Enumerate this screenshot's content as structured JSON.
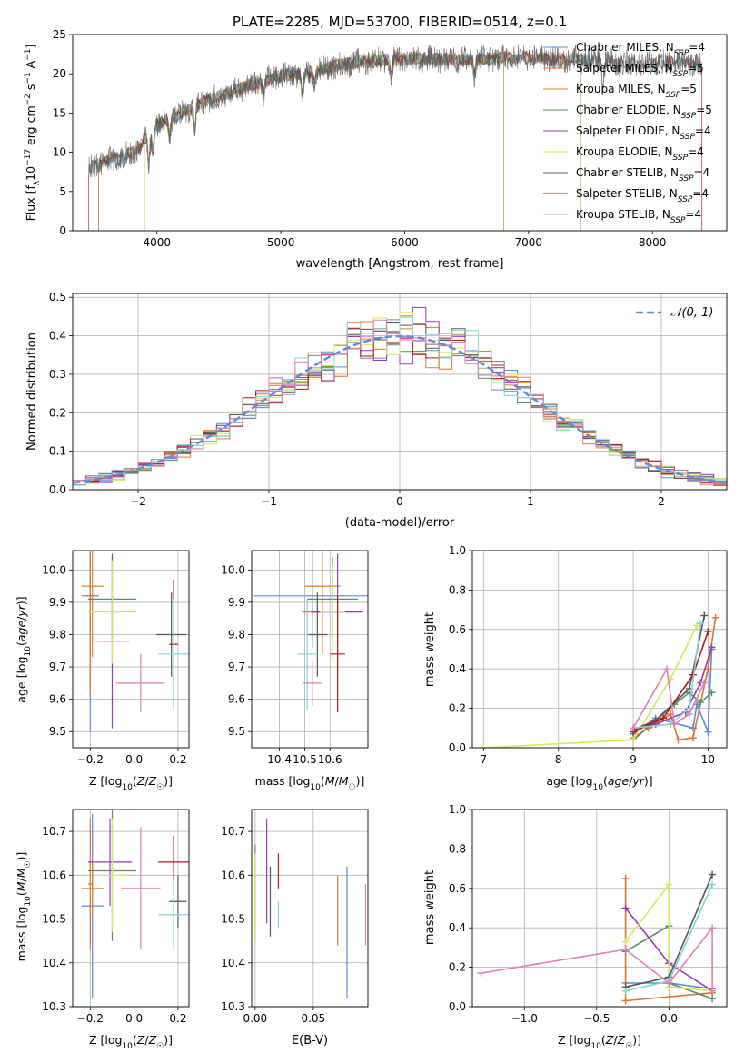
{
  "palette": {
    "Chabrier MILES": "#5b8bd9",
    "Salpeter MILES": "#e0732a",
    "Kroupa MILES": "#d8862b",
    "Chabrier ELODIE": "#5a8f61",
    "Salpeter ELODIE": "#9a3ab0",
    "Kroupa ELODIE": "#d6e85a",
    "Chabrier STELIB": "#555555",
    "Salpeter STELIB": "#b01818",
    "Kroupa STELIB": "#7fd6dc",
    "Normal": "#5b8bd9",
    "Pink": "#e27fb5"
  },
  "chart_data": [
    {
      "id": "spectrum",
      "type": "line",
      "title": "PLATE=2285, MJD=53700, FIBERID=0514, z=0.1",
      "xlabel": "wavelength [Angstrom, rest frame]",
      "ylabel": "Flux [f_λ10^{-17} erg cm^{-2} s^{-1} A^{-1}]",
      "xlim": [
        3320,
        8600
      ],
      "ylim": [
        0,
        25
      ],
      "xticks": [
        4000,
        5000,
        6000,
        7000,
        8000
      ],
      "yticks": [
        0,
        5,
        10,
        15,
        20,
        25
      ],
      "grid": false,
      "legend_position": "right",
      "legend": [
        {
          "name": "Chabrier MILES, N_SSP=4",
          "base": "Chabrier MILES, N",
          "sub": "SSP",
          "tail": "=4"
        },
        {
          "name": "Salpeter MILES, N_SSP=5",
          "base": "Salpeter MILES, N",
          "sub": "SSP",
          "tail": "=5"
        },
        {
          "name": "Kroupa MILES, N_SSP=5",
          "base": "Kroupa MILES, N",
          "sub": "SSP",
          "tail": "=5"
        },
        {
          "name": "Chabrier ELODIE, N_SSP=5",
          "base": "Chabrier ELODIE, N",
          "sub": "SSP",
          "tail": "=5"
        },
        {
          "name": "Salpeter ELODIE, N_SSP=4",
          "base": "Salpeter ELODIE, N",
          "sub": "SSP",
          "tail": "=4"
        },
        {
          "name": "Kroupa ELODIE, N_SSP=4",
          "base": "Kroupa ELODIE, N",
          "sub": "SSP",
          "tail": "=4"
        },
        {
          "name": "Chabrier STELIB, N_SSP=4",
          "base": "Chabrier STELIB, N",
          "sub": "SSP",
          "tail": "=4"
        },
        {
          "name": "Salpeter STELIB, N_SSP=4",
          "base": "Salpeter STELIB, N",
          "sub": "SSP",
          "tail": "=4"
        },
        {
          "name": "Kroupa STELIB, N_SSP=4",
          "base": "Kroupa STELIB, N",
          "sub": "SSP",
          "tail": "=4"
        }
      ],
      "continuum": [
        [
          3450,
          8.0
        ],
        [
          3600,
          9.0
        ],
        [
          3800,
          9.8
        ],
        [
          3900,
          11.5
        ],
        [
          4000,
          13.5
        ],
        [
          4200,
          15.0
        ],
        [
          4400,
          16.5
        ],
        [
          4600,
          17.6
        ],
        [
          4800,
          18.8
        ],
        [
          5000,
          19.8
        ],
        [
          5200,
          20.0
        ],
        [
          5400,
          20.8
        ],
        [
          5600,
          21.4
        ],
        [
          5800,
          21.7
        ],
        [
          6000,
          22.0
        ],
        [
          6200,
          21.9
        ],
        [
          6400,
          21.8
        ],
        [
          6600,
          21.8
        ],
        [
          6800,
          22.0
        ],
        [
          7000,
          22.1
        ],
        [
          7200,
          21.8
        ],
        [
          7400,
          21.8
        ],
        [
          7600,
          21.6
        ],
        [
          7800,
          21.3
        ],
        [
          8000,
          21.2
        ],
        [
          8200,
          21.5
        ],
        [
          8400,
          21.0
        ]
      ],
      "absorption_features": [
        [
          3934,
          4
        ],
        [
          3968,
          3
        ],
        [
          4102,
          2
        ],
        [
          4304,
          3
        ],
        [
          4861,
          2
        ],
        [
          5175,
          3
        ],
        [
          5270,
          1.5
        ],
        [
          5893,
          2.5
        ],
        [
          6563,
          2
        ],
        [
          7600,
          3
        ]
      ]
    },
    {
      "id": "residuals",
      "type": "step",
      "xlabel": "(data-model)/error",
      "ylabel": "Normed distribution",
      "xlim": [
        -2.5,
        2.5
      ],
      "ylim": [
        0,
        0.51
      ],
      "xticks": [
        -2,
        -1,
        0,
        1,
        2
      ],
      "yticks": [
        0.0,
        0.1,
        0.2,
        0.3,
        0.4,
        0.5
      ],
      "grid": true,
      "legend_position": "top-right",
      "legend": [
        {
          "name": "𝒩(0, 1)"
        }
      ],
      "bin_width": 0.1
    },
    {
      "id": "age_vs_Z",
      "type": "errorbar",
      "xlabel": "Z [log10(Z/Z☉)]",
      "ylabel": "age  [log10(age/yr)]",
      "xlim": [
        -0.28,
        0.25
      ],
      "ylim": [
        9.45,
        10.06
      ],
      "xticks": [
        -0.2,
        0.0,
        0.2
      ],
      "yticks": [
        9.5,
        9.6,
        9.7,
        9.8,
        9.9,
        10.0
      ],
      "grid": true,
      "points": [
        {
          "c": "Chabrier MILES",
          "x": -0.2,
          "xe": 0.04,
          "y": 9.92,
          "ye": 0.42
        },
        {
          "c": "Salpeter MILES",
          "x": -0.2,
          "xe": 0.02,
          "y": 9.92,
          "ye": 0.3
        },
        {
          "c": "Kroupa MILES",
          "x": -0.19,
          "xe": 0.05,
          "y": 9.95,
          "ye": 0.22
        },
        {
          "c": "Chabrier ELODIE",
          "x": -0.1,
          "xe": 0.11,
          "y": 9.91,
          "ye": 0.13
        },
        {
          "c": "Salpeter ELODIE",
          "x": -0.1,
          "xe": 0.08,
          "y": 9.78,
          "ye": 0.27
        },
        {
          "c": "Kroupa ELODIE",
          "x": -0.1,
          "xe": 0.11,
          "y": 9.87,
          "ye": 0.16
        },
        {
          "c": "Chabrier STELIB",
          "x": 0.17,
          "xe": 0.07,
          "y": 9.8,
          "ye": 0.13
        },
        {
          "c": "Salpeter STELIB",
          "x": 0.18,
          "xe": 0.02,
          "y": 9.77,
          "ye": 0.2
        },
        {
          "c": "Kroupa STELIB",
          "x": 0.18,
          "xe": 0.07,
          "y": 9.74,
          "ye": 0.17
        },
        {
          "c": "Pink",
          "x": 0.03,
          "xe": 0.11,
          "y": 9.65,
          "ye": 0.09
        }
      ]
    },
    {
      "id": "age_vs_mass",
      "type": "errorbar",
      "xlabel": "mass [log10(M/M☉)]",
      "ylabel": "",
      "xlim": [
        10.29,
        10.75
      ],
      "ylim": [
        9.45,
        10.06
      ],
      "xticks": [
        10.4,
        10.5,
        10.6
      ],
      "yticks": [
        9.5,
        9.6,
        9.7,
        9.8,
        9.9,
        10.0
      ],
      "grid": true,
      "points": [
        {
          "c": "Chabrier MILES",
          "x": 10.53,
          "xe": 0.23,
          "y": 9.92,
          "ye": 0.16
        },
        {
          "c": "Salpeter MILES",
          "x": 10.57,
          "xe": 0.08,
          "y": 9.87,
          "ye": 0.13
        },
        {
          "c": "Kroupa MILES",
          "x": 10.57,
          "xe": 0.07,
          "y": 9.95,
          "ye": 0.12
        },
        {
          "c": "Chabrier ELODIE",
          "x": 10.61,
          "xe": 0.1,
          "y": 9.91,
          "ye": 0.13
        },
        {
          "c": "Salpeter ELODIE",
          "x": 10.63,
          "xe": 0.1,
          "y": 9.87,
          "ye": 0.18
        },
        {
          "c": "Kroupa ELODIE",
          "x": 10.61,
          "xe": 0.05,
          "y": 9.87,
          "ye": 0.15
        },
        {
          "c": "Chabrier STELIB",
          "x": 10.55,
          "xe": 0.04,
          "y": 9.8,
          "ye": 0.13
        },
        {
          "c": "Salpeter STELIB",
          "x": 10.63,
          "xe": 0.03,
          "y": 9.74,
          "ye": 0.18
        },
        {
          "c": "Kroupa STELIB",
          "x": 10.51,
          "xe": 0.04,
          "y": 9.74,
          "ye": 0.17
        },
        {
          "c": "Pink",
          "x": 10.53,
          "xe": 0.04,
          "y": 9.65,
          "ye": 0.07
        }
      ]
    },
    {
      "id": "weight_vs_age",
      "type": "line",
      "xlabel": "age  [log10(age/yr)]",
      "ylabel": "mass weight",
      "xlim": [
        6.85,
        10.25
      ],
      "ylim": [
        0,
        1
      ],
      "xticks": [
        7,
        8,
        9,
        10
      ],
      "yticks": [
        0.0,
        0.2,
        0.4,
        0.6,
        0.8,
        1.0
      ],
      "grid": true,
      "series": [
        {
          "c": "Chabrier MILES",
          "points": [
            [
              9.0,
              0.07
            ],
            [
              9.3,
              0.15
            ],
            [
              9.8,
              0.1
            ],
            [
              9.85,
              0.22
            ],
            [
              10.0,
              0.08
            ],
            [
              10.05,
              0.5
            ]
          ]
        },
        {
          "c": "Salpeter MILES",
          "points": [
            [
              9.0,
              0.05
            ],
            [
              9.2,
              0.1
            ],
            [
              9.5,
              0.17
            ],
            [
              9.6,
              0.04
            ],
            [
              9.8,
              0.05
            ],
            [
              10.0,
              0.4
            ],
            [
              10.1,
              0.66
            ]
          ]
        },
        {
          "c": "Chabrier ELODIE",
          "points": [
            [
              9.0,
              0.04
            ],
            [
              9.25,
              0.12
            ],
            [
              9.55,
              0.22
            ],
            [
              9.75,
              0.28
            ],
            [
              9.9,
              0.23
            ],
            [
              10.05,
              0.28
            ]
          ]
        },
        {
          "c": "Salpeter ELODIE",
          "points": [
            [
              9.0,
              0.09
            ],
            [
              9.3,
              0.12
            ],
            [
              9.7,
              0.18
            ],
            [
              9.9,
              0.33
            ],
            [
              10.05,
              0.51
            ]
          ]
        },
        {
          "c": "Kroupa ELODIE",
          "points": [
            [
              7.0,
              0.0
            ],
            [
              9.0,
              0.04
            ],
            [
              9.5,
              0.35
            ],
            [
              9.85,
              0.62
            ]
          ]
        },
        {
          "c": "Chabrier STELIB",
          "points": [
            [
              9.0,
              0.09
            ],
            [
              9.3,
              0.14
            ],
            [
              9.75,
              0.3
            ],
            [
              9.95,
              0.67
            ]
          ]
        },
        {
          "c": "Salpeter STELIB",
          "points": [
            [
              9.0,
              0.08
            ],
            [
              9.4,
              0.15
            ],
            [
              9.8,
              0.37
            ],
            [
              10.0,
              0.59
            ]
          ]
        },
        {
          "c": "Kroupa STELIB",
          "points": [
            [
              9.0,
              0.1
            ],
            [
              9.5,
              0.12
            ],
            [
              9.75,
              0.2
            ],
            [
              9.9,
              0.63
            ]
          ]
        },
        {
          "c": "Pink",
          "points": [
            [
              9.0,
              0.1
            ],
            [
              9.45,
              0.4
            ],
            [
              9.55,
              0.12
            ],
            [
              9.75,
              0.17
            ],
            [
              9.95,
              0.33
            ]
          ]
        }
      ]
    },
    {
      "id": "mass_vs_Z",
      "type": "errorbar",
      "xlabel": "Z [log10(Z/Z☉)]",
      "ylabel": "mass [log10(M/M☉)]",
      "xlim": [
        -0.28,
        0.25
      ],
      "ylim": [
        10.3,
        10.75
      ],
      "xticks": [
        -0.2,
        0.0,
        0.2
      ],
      "yticks": [
        10.3,
        10.4,
        10.5,
        10.6,
        10.7
      ],
      "grid": true,
      "points": [
        {
          "c": "Chabrier MILES",
          "x": -0.19,
          "xe": 0.05,
          "y": 10.53,
          "ye": 0.21
        },
        {
          "c": "Salpeter MILES",
          "x": -0.2,
          "xe": 0.01,
          "y": 10.58,
          "ye": 0.15
        },
        {
          "c": "Kroupa MILES",
          "x": -0.19,
          "xe": 0.05,
          "y": 10.57,
          "ye": 0.06
        },
        {
          "c": "Chabrier ELODIE",
          "x": -0.1,
          "xe": 0.11,
          "y": 10.61,
          "ye": 0.16
        },
        {
          "c": "Salpeter ELODIE",
          "x": -0.11,
          "xe": 0.1,
          "y": 10.63,
          "ye": 0.1
        },
        {
          "c": "Kroupa ELODIE",
          "x": -0.1,
          "xe": 0.08,
          "y": 10.6,
          "ye": 0.13
        },
        {
          "c": "Chabrier STELIB",
          "x": 0.2,
          "xe": 0.04,
          "y": 10.54,
          "ye": 0.06
        },
        {
          "c": "Salpeter STELIB",
          "x": 0.18,
          "xe": 0.07,
          "y": 10.63,
          "ye": 0.06
        },
        {
          "c": "Kroupa STELIB",
          "x": 0.18,
          "xe": 0.07,
          "y": 10.51,
          "ye": 0.08
        },
        {
          "c": "Pink",
          "x": 0.03,
          "xe": 0.09,
          "y": 10.57,
          "ye": 0.14
        }
      ]
    },
    {
      "id": "mass_vs_ebv",
      "type": "errorbar",
      "xlabel": "E(B-V)",
      "ylabel": "",
      "xlim": [
        -0.003,
        0.097
      ],
      "ylim": [
        10.3,
        10.75
      ],
      "xticks": [
        0.0,
        0.05
      ],
      "xtick_labels": [
        "0.00",
        "0.05"
      ],
      "yticks": [
        10.3,
        10.4,
        10.5,
        10.6,
        10.7
      ],
      "grid": true,
      "points": [
        {
          "c": "Chabrier MILES",
          "x": 0.079,
          "xe": 0,
          "y": 10.47,
          "ye": 0.15
        },
        {
          "c": "Salpeter MILES",
          "x": 0.071,
          "xe": 0,
          "y": 10.52,
          "ye": 0.08
        },
        {
          "c": "Chabrier ELODIE",
          "x": 0.0,
          "xe": 0,
          "y": 10.56,
          "ye": 0.11
        },
        {
          "c": "Salpeter ELODIE",
          "x": 0.01,
          "xe": 0,
          "y": 10.61,
          "ye": 0.12
        },
        {
          "c": "Kroupa ELODIE",
          "x": 0.0,
          "xe": 0,
          "y": 10.55,
          "ye": 0.1
        },
        {
          "c": "Chabrier STELIB",
          "x": 0.013,
          "xe": 0,
          "y": 10.54,
          "ye": 0.08
        },
        {
          "c": "Salpeter STELIB",
          "x": 0.02,
          "xe": 0,
          "y": 10.61,
          "ye": 0.04
        },
        {
          "c": "Kroupa STELIB",
          "x": 0.02,
          "xe": 0,
          "y": 10.51,
          "ye": 0.03
        },
        {
          "c": "Pink",
          "x": 0.095,
          "xe": 0,
          "y": 10.51,
          "ye": 0.07
        }
      ]
    },
    {
      "id": "weight_vs_Z",
      "type": "line",
      "xlabel": "Z [log10(Z/Z☉)]",
      "ylabel": "mass weight",
      "xlim": [
        -1.36,
        0.4
      ],
      "ylim": [
        0,
        1
      ],
      "xticks": [
        -1.0,
        -0.5,
        0.0
      ],
      "yticks": [
        0.0,
        0.2,
        0.4,
        0.6,
        0.8,
        1.0
      ],
      "grid": true,
      "series": [
        {
          "c": "Chabrier MILES",
          "points": [
            [
              -0.3,
              0.12
            ],
            [
              0.0,
              0.12
            ],
            [
              0.3,
              0.09
            ]
          ]
        },
        {
          "c": "Salpeter MILES",
          "points": [
            [
              -0.3,
              0.65
            ],
            [
              -0.3,
              0.03
            ],
            [
              0.3,
              0.07
            ]
          ]
        },
        {
          "c": "Chabrier ELODIE",
          "points": [
            [
              -0.3,
              0.28
            ],
            [
              0.0,
              0.41
            ],
            [
              0.0,
              0.12
            ],
            [
              0.3,
              0.04
            ]
          ]
        },
        {
          "c": "Salpeter ELODIE",
          "points": [
            [
              -0.3,
              0.5
            ],
            [
              0.0,
              0.22
            ],
            [
              0.3,
              0.08
            ]
          ]
        },
        {
          "c": "Kroupa ELODIE",
          "points": [
            [
              -0.3,
              0.33
            ],
            [
              0.0,
              0.62
            ],
            [
              0.0,
              0.1
            ],
            [
              0.3,
              0.08
            ]
          ]
        },
        {
          "c": "Chabrier STELIB",
          "points": [
            [
              -0.3,
              0.1
            ],
            [
              0.0,
              0.15
            ],
            [
              0.3,
              0.67
            ]
          ]
        },
        {
          "c": "Kroupa STELIB",
          "points": [
            [
              -0.3,
              0.08
            ],
            [
              0.0,
              0.13
            ],
            [
              0.3,
              0.62
            ]
          ]
        },
        {
          "c": "Pink",
          "points": [
            [
              -1.3,
              0.17
            ],
            [
              -0.3,
              0.29
            ],
            [
              0.0,
              0.12
            ],
            [
              0.3,
              0.4
            ],
            [
              0.3,
              0.08
            ]
          ]
        }
      ]
    }
  ]
}
